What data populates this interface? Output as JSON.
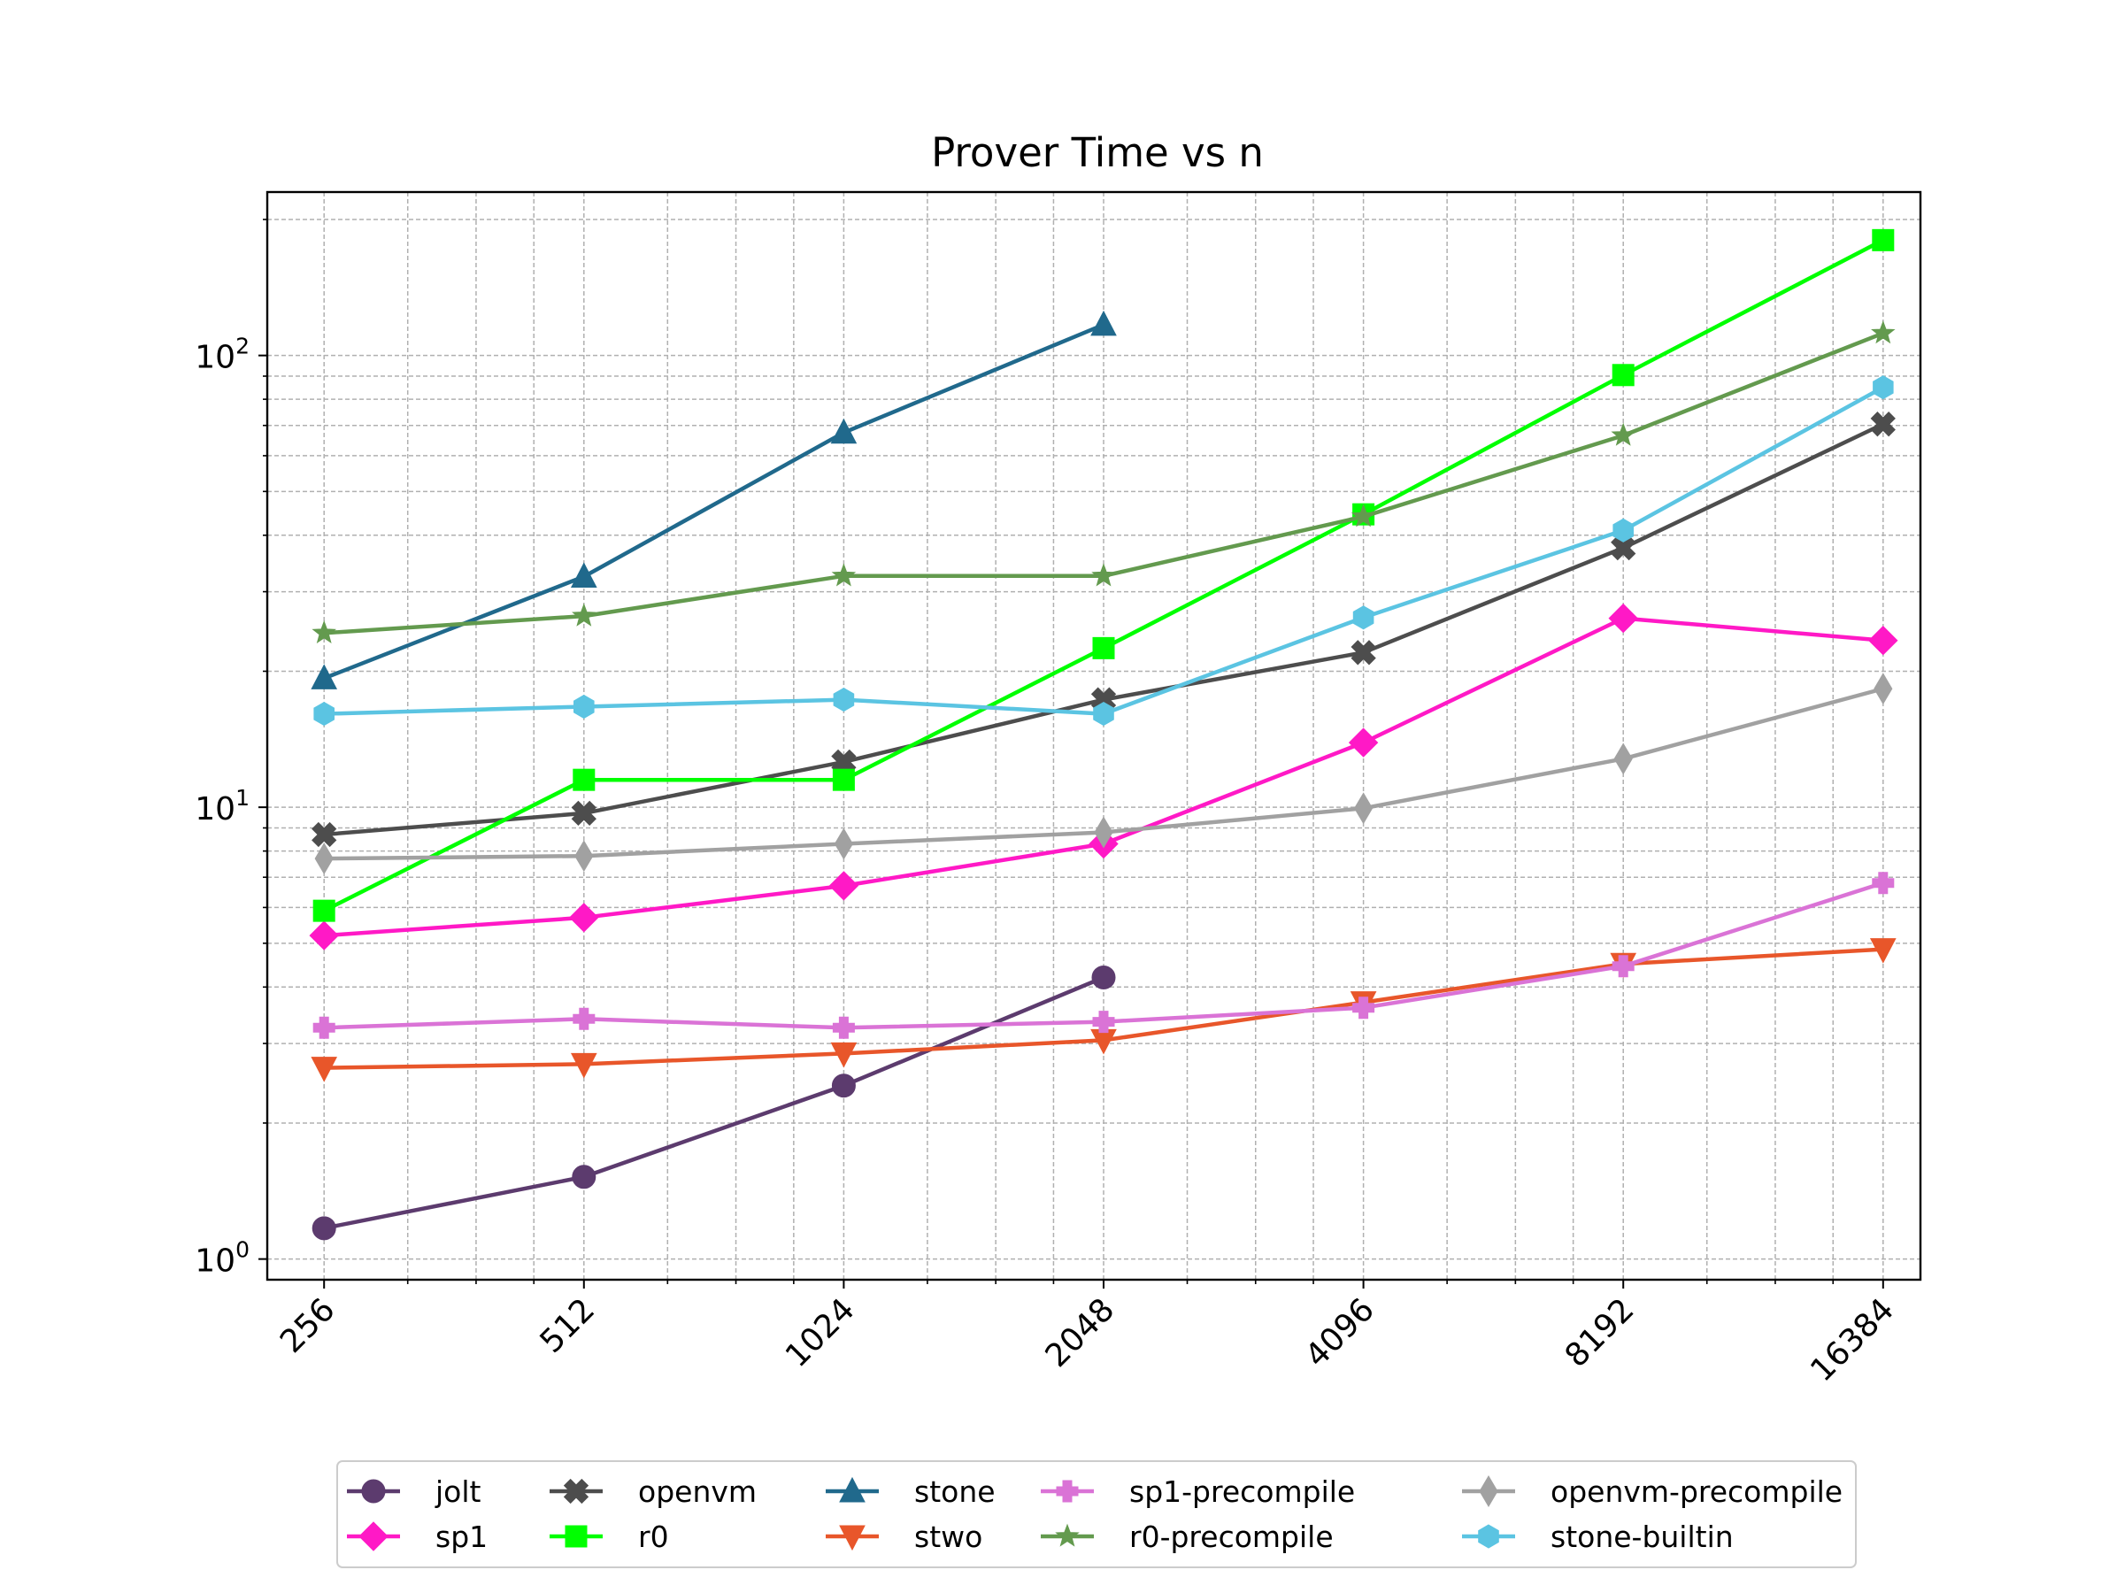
{
  "chart_data": {
    "type": "line",
    "title": "Prover Time vs n",
    "xlabel": "",
    "ylabel": "",
    "x_scale": "log2",
    "y_scale": "log10",
    "x_ticks": [
      256,
      512,
      1024,
      2048,
      4096,
      8192,
      16384
    ],
    "x_tick_labels": [
      "256",
      "512",
      "1024",
      "2048",
      "4096",
      "8192",
      "16384"
    ],
    "y_tick_labels": [
      {
        "base": "10",
        "exp": "0",
        "value": 1
      },
      {
        "base": "10",
        "exp": "1",
        "value": 10
      },
      {
        "base": "10",
        "exp": "2",
        "value": 100
      }
    ],
    "ylim": [
      0.9,
      230
    ],
    "grid": true,
    "legend_position": "bottom-center",
    "series": [
      {
        "name": "jolt",
        "color": "#5c3b6e",
        "marker": "circle",
        "x": [
          256,
          512,
          1024,
          2048
        ],
        "y": [
          1.17,
          1.52,
          2.42,
          4.2
        ]
      },
      {
        "name": "sp1",
        "color": "#ff19c6",
        "marker": "diamond",
        "x": [
          256,
          512,
          1024,
          2048,
          4096,
          8192,
          16384
        ],
        "y": [
          5.2,
          5.7,
          6.7,
          8.3,
          13.9,
          26.2,
          23.4
        ]
      },
      {
        "name": "openvm",
        "color": "#4d4d4d",
        "marker": "x-filled",
        "x": [
          256,
          512,
          1024,
          2048,
          4096,
          8192,
          16384
        ],
        "y": [
          8.7,
          9.7,
          12.6,
          17.3,
          22.0,
          37.5,
          70.5
        ]
      },
      {
        "name": "r0",
        "color": "#00ff00",
        "marker": "square",
        "x": [
          256,
          512,
          1024,
          2048,
          4096,
          8192,
          16384
        ],
        "y": [
          5.9,
          11.5,
          11.5,
          22.5,
          44.5,
          90.5,
          180
        ]
      },
      {
        "name": "stone",
        "color": "#20698c",
        "marker": "triangle-up",
        "x": [
          256,
          512,
          1024,
          2048
        ],
        "y": [
          19.3,
          32.4,
          67.5,
          117
        ]
      },
      {
        "name": "stwo",
        "color": "#e8562a",
        "marker": "triangle-down",
        "x": [
          256,
          512,
          1024,
          2048,
          4096,
          8192,
          16384
        ],
        "y": [
          2.65,
          2.7,
          2.85,
          3.05,
          3.7,
          4.5,
          4.85
        ]
      },
      {
        "name": "sp1-precompile",
        "color": "#da73d6",
        "marker": "plus-filled",
        "x": [
          256,
          512,
          1024,
          2048,
          4096,
          8192,
          16384
        ],
        "y": [
          3.25,
          3.4,
          3.25,
          3.35,
          3.6,
          4.45,
          6.8
        ]
      },
      {
        "name": "r0-precompile",
        "color": "#639a4e",
        "marker": "star",
        "x": [
          256,
          512,
          1024,
          2048,
          4096,
          8192,
          16384
        ],
        "y": [
          24.3,
          26.5,
          32.5,
          32.5,
          44.0,
          66.5,
          112
        ]
      },
      {
        "name": "openvm-precompile",
        "color": "#a1a1a1",
        "marker": "thin-diamond",
        "x": [
          256,
          512,
          1024,
          2048,
          4096,
          8192,
          16384
        ],
        "y": [
          7.7,
          7.8,
          8.3,
          8.8,
          9.95,
          12.8,
          18.3
        ]
      },
      {
        "name": "stone-builtin",
        "color": "#5bc4e2",
        "marker": "hexagon",
        "x": [
          256,
          512,
          1024,
          2048,
          4096,
          8192,
          16384
        ],
        "y": [
          16.1,
          16.7,
          17.3,
          16.1,
          26.3,
          41.0,
          85.0
        ]
      }
    ]
  }
}
